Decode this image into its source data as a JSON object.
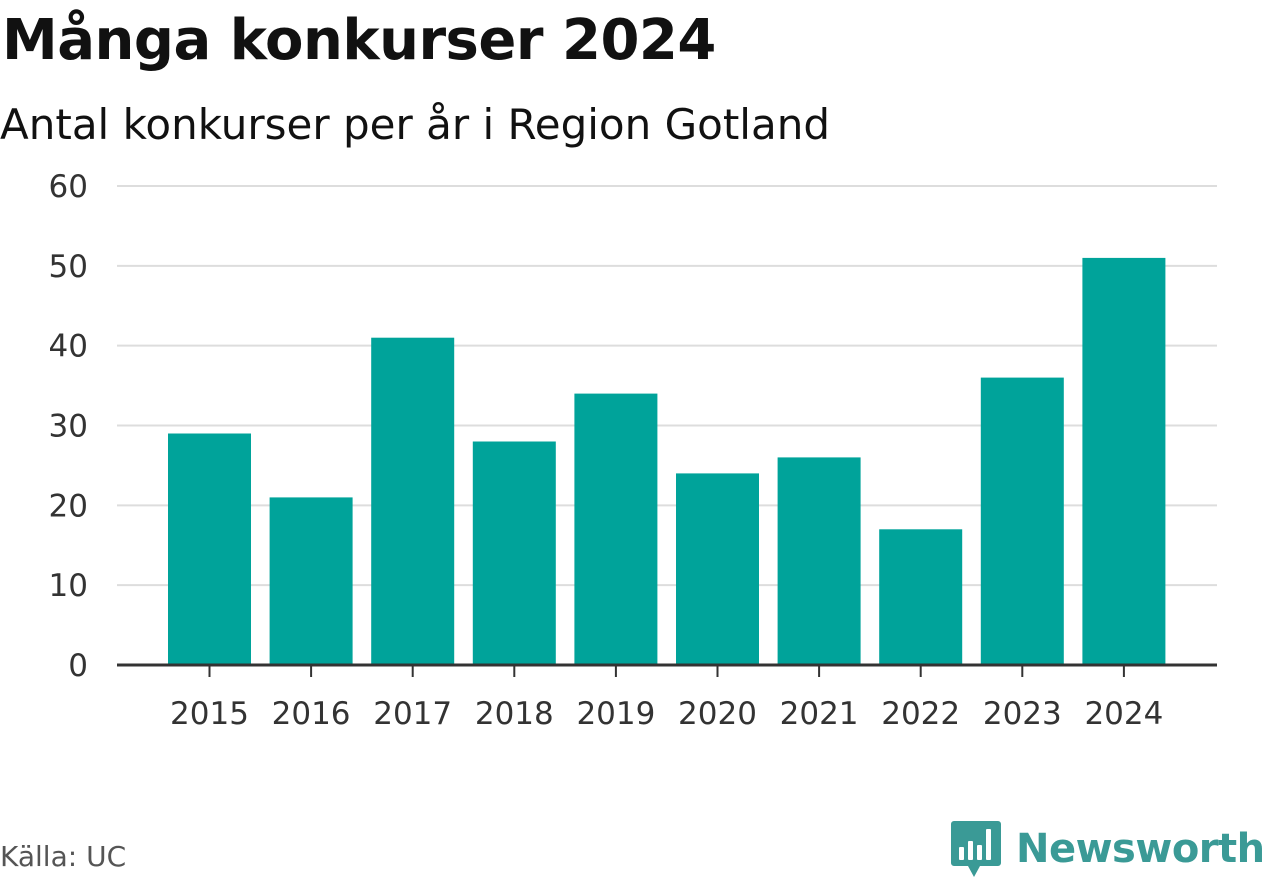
{
  "header": {
    "title": "Många konkurser 2024",
    "subtitle": "Antal konkurser per år i Region Gotland"
  },
  "footer": {
    "source": "Källa: UC",
    "brand": "Newsworthy",
    "brand_icon": "newsworthy-bar-chart-speech-bubble-icon"
  },
  "colors": {
    "bar": "#00a39a",
    "grid": "#dddddd",
    "axis": "#333333",
    "brand": "#3a9a96"
  },
  "chart_data": {
    "type": "bar",
    "title": "Många konkurser 2024",
    "subtitle": "Antal konkurser per år i Region Gotland",
    "xlabel": "",
    "ylabel": "",
    "categories": [
      "2015",
      "2016",
      "2017",
      "2018",
      "2019",
      "2020",
      "2021",
      "2022",
      "2023",
      "2024"
    ],
    "values": [
      29,
      21,
      41,
      28,
      34,
      24,
      26,
      17,
      36,
      51
    ],
    "ylim": [
      0,
      60
    ],
    "yticks": [
      0,
      10,
      20,
      30,
      40,
      50,
      60
    ],
    "grid": true,
    "legend": "none"
  }
}
